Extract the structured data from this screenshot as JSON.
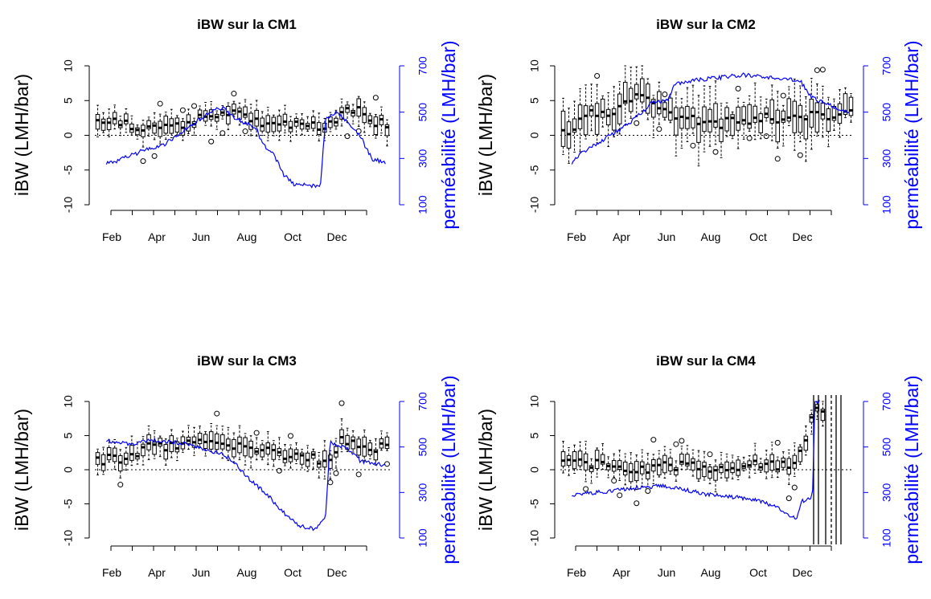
{
  "chart_data": [
    {
      "type": "box-line",
      "title": "iBW sur la CM1",
      "ylabel": "iBW (LMH/bar)",
      "y2label": "perméabilité (LMH/bar)",
      "x_ticks": [
        "Feb",
        "Apr",
        "Jun",
        "Aug",
        "Oct",
        "Dec"
      ],
      "ylim": [
        -10,
        10
      ],
      "y_ticks": [
        -10,
        -5,
        0,
        5,
        10
      ],
      "y2lim": [
        100,
        700
      ],
      "y2_ticks": [
        100,
        300,
        500,
        700
      ],
      "box_median_anchors": [
        [
          0.5,
          2.0
        ],
        [
          2.0,
          1.2
        ],
        [
          3.5,
          1.0
        ],
        [
          5.0,
          3.0
        ],
        [
          6.0,
          3.5
        ],
        [
          7.0,
          2.0
        ],
        [
          8.0,
          1.5
        ],
        [
          9.0,
          1.3
        ],
        [
          10.0,
          1.3
        ],
        [
          10.5,
          2.5
        ],
        [
          10.8,
          3.5
        ],
        [
          11.2,
          4.0
        ],
        [
          11.5,
          2.8
        ],
        [
          12.0,
          2.0
        ],
        [
          12.6,
          1.5
        ]
      ],
      "permeability": [
        [
          0.5,
          280
        ],
        [
          1.0,
          290
        ],
        [
          2.0,
          330
        ],
        [
          3.0,
          360
        ],
        [
          4.0,
          430
        ],
        [
          5.0,
          500
        ],
        [
          5.5,
          520
        ],
        [
          6.0,
          480
        ],
        [
          7.0,
          430
        ],
        [
          7.3,
          360
        ],
        [
          7.8,
          310
        ],
        [
          8.2,
          230
        ],
        [
          8.6,
          190
        ],
        [
          9.0,
          185
        ],
        [
          9.5,
          180
        ],
        [
          9.8,
          190
        ],
        [
          10.0,
          470
        ],
        [
          10.5,
          500
        ],
        [
          11.0,
          450
        ],
        [
          11.5,
          400
        ],
        [
          12.0,
          300
        ],
        [
          12.6,
          280
        ]
      ]
    },
    {
      "type": "box-line",
      "title": "iBW sur la CM2",
      "ylabel": "iBW (LMH/bar)",
      "y2label": "perméabilité (LMH/bar)",
      "x_ticks": [
        "Feb",
        "Apr",
        "Jun",
        "Aug",
        "Oct",
        "Dec"
      ],
      "ylim": [
        -10,
        10
      ],
      "y_ticks": [
        -10,
        -5,
        0,
        5,
        10
      ],
      "y2lim": [
        100,
        700
      ],
      "y2_ticks": [
        100,
        300,
        500,
        700
      ],
      "box_median_anchors": [
        [
          0.5,
          0.5
        ],
        [
          1.5,
          3.0
        ],
        [
          2.5,
          3.5
        ],
        [
          3.5,
          6.0
        ],
        [
          4.5,
          3.5
        ],
        [
          5.5,
          2.5
        ],
        [
          6.5,
          1.5
        ],
        [
          7.5,
          2.0
        ],
        [
          8.5,
          2.5
        ],
        [
          9.5,
          2.5
        ],
        [
          10.5,
          3.0
        ],
        [
          11.5,
          3.0
        ],
        [
          12.6,
          3.0
        ]
      ],
      "permeability": [
        [
          0.5,
          280
        ],
        [
          1.0,
          330
        ],
        [
          2.0,
          390
        ],
        [
          3.0,
          450
        ],
        [
          4.0,
          540
        ],
        [
          4.7,
          550
        ],
        [
          5.0,
          620
        ],
        [
          6.0,
          640
        ],
        [
          7.0,
          650
        ],
        [
          8.0,
          660
        ],
        [
          9.0,
          650
        ],
        [
          10.0,
          640
        ],
        [
          10.5,
          630
        ],
        [
          11.0,
          560
        ],
        [
          12.0,
          520
        ],
        [
          12.6,
          500
        ]
      ]
    },
    {
      "type": "box-line",
      "title": "iBW sur la CM3",
      "ylabel": "iBW (LMH/bar)",
      "y2label": "perméabilité (LMH/bar)",
      "x_ticks": [
        "Feb",
        "Apr",
        "Jun",
        "Aug",
        "Oct",
        "Dec"
      ],
      "ylim": [
        -10,
        10
      ],
      "y_ticks": [
        -10,
        -5,
        0,
        5,
        10
      ],
      "y2lim": [
        100,
        700
      ],
      "y2_ticks": [
        100,
        300,
        500,
        700
      ],
      "box_median_anchors": [
        [
          0.5,
          1.5
        ],
        [
          1.5,
          1.5
        ],
        [
          2.5,
          3.5
        ],
        [
          3.5,
          3.5
        ],
        [
          4.5,
          3.8
        ],
        [
          5.5,
          3.8
        ],
        [
          6.5,
          3.0
        ],
        [
          7.5,
          2.5
        ],
        [
          8.5,
          2.0
        ],
        [
          9.5,
          1.5
        ],
        [
          10.0,
          1.0
        ],
        [
          10.5,
          4.5
        ],
        [
          11.5,
          3.0
        ],
        [
          12.6,
          3.5
        ]
      ],
      "permeability": [
        [
          0.5,
          530
        ],
        [
          1.5,
          510
        ],
        [
          2.5,
          530
        ],
        [
          3.5,
          520
        ],
        [
          4.5,
          500
        ],
        [
          5.5,
          470
        ],
        [
          6.0,
          440
        ],
        [
          6.5,
          380
        ],
        [
          7.0,
          330
        ],
        [
          7.5,
          290
        ],
        [
          8.0,
          230
        ],
        [
          8.5,
          180
        ],
        [
          9.0,
          150
        ],
        [
          9.5,
          140
        ],
        [
          10.0,
          180
        ],
        [
          10.2,
          520
        ],
        [
          11.0,
          490
        ],
        [
          11.5,
          440
        ],
        [
          12.0,
          430
        ],
        [
          12.6,
          420
        ]
      ]
    },
    {
      "type": "box-line",
      "title": "iBW sur la CM4",
      "ylabel": "iBW (LMH/bar)",
      "y2label": "perméabilité (LMH/bar)",
      "x_ticks": [
        "Feb",
        "Apr",
        "Jun",
        "Aug",
        "Oct",
        "Dec"
      ],
      "ylim": [
        -10,
        10
      ],
      "y_ticks": [
        -10,
        -5,
        0,
        5,
        10
      ],
      "y2lim": [
        100,
        700
      ],
      "y2_ticks": [
        100,
        300,
        500,
        700
      ],
      "box_median_anchors": [
        [
          0.5,
          1.0
        ],
        [
          1.5,
          1.0
        ],
        [
          2.5,
          0.5
        ],
        [
          3.5,
          0.0
        ],
        [
          4.5,
          0.5
        ],
        [
          5.5,
          0.5
        ],
        [
          6.5,
          0.0
        ],
        [
          7.5,
          0.5
        ],
        [
          8.5,
          1.0
        ],
        [
          9.5,
          0.5
        ],
        [
          10.0,
          1.0
        ],
        [
          10.5,
          3.0
        ],
        [
          10.8,
          8.0
        ],
        [
          11.2,
          9.0
        ]
      ],
      "permeability": [
        [
          0.5,
          290
        ],
        [
          1.5,
          300
        ],
        [
          2.5,
          310
        ],
        [
          3.5,
          320
        ],
        [
          4.5,
          330
        ],
        [
          5.5,
          310
        ],
        [
          6.5,
          290
        ],
        [
          7.5,
          280
        ],
        [
          8.5,
          270
        ],
        [
          9.0,
          250
        ],
        [
          9.5,
          230
        ],
        [
          10.0,
          200
        ],
        [
          10.3,
          180
        ],
        [
          10.5,
          260
        ],
        [
          11.0,
          280
        ],
        [
          11.1,
          700
        ],
        [
          11.3,
          700
        ]
      ]
    }
  ]
}
